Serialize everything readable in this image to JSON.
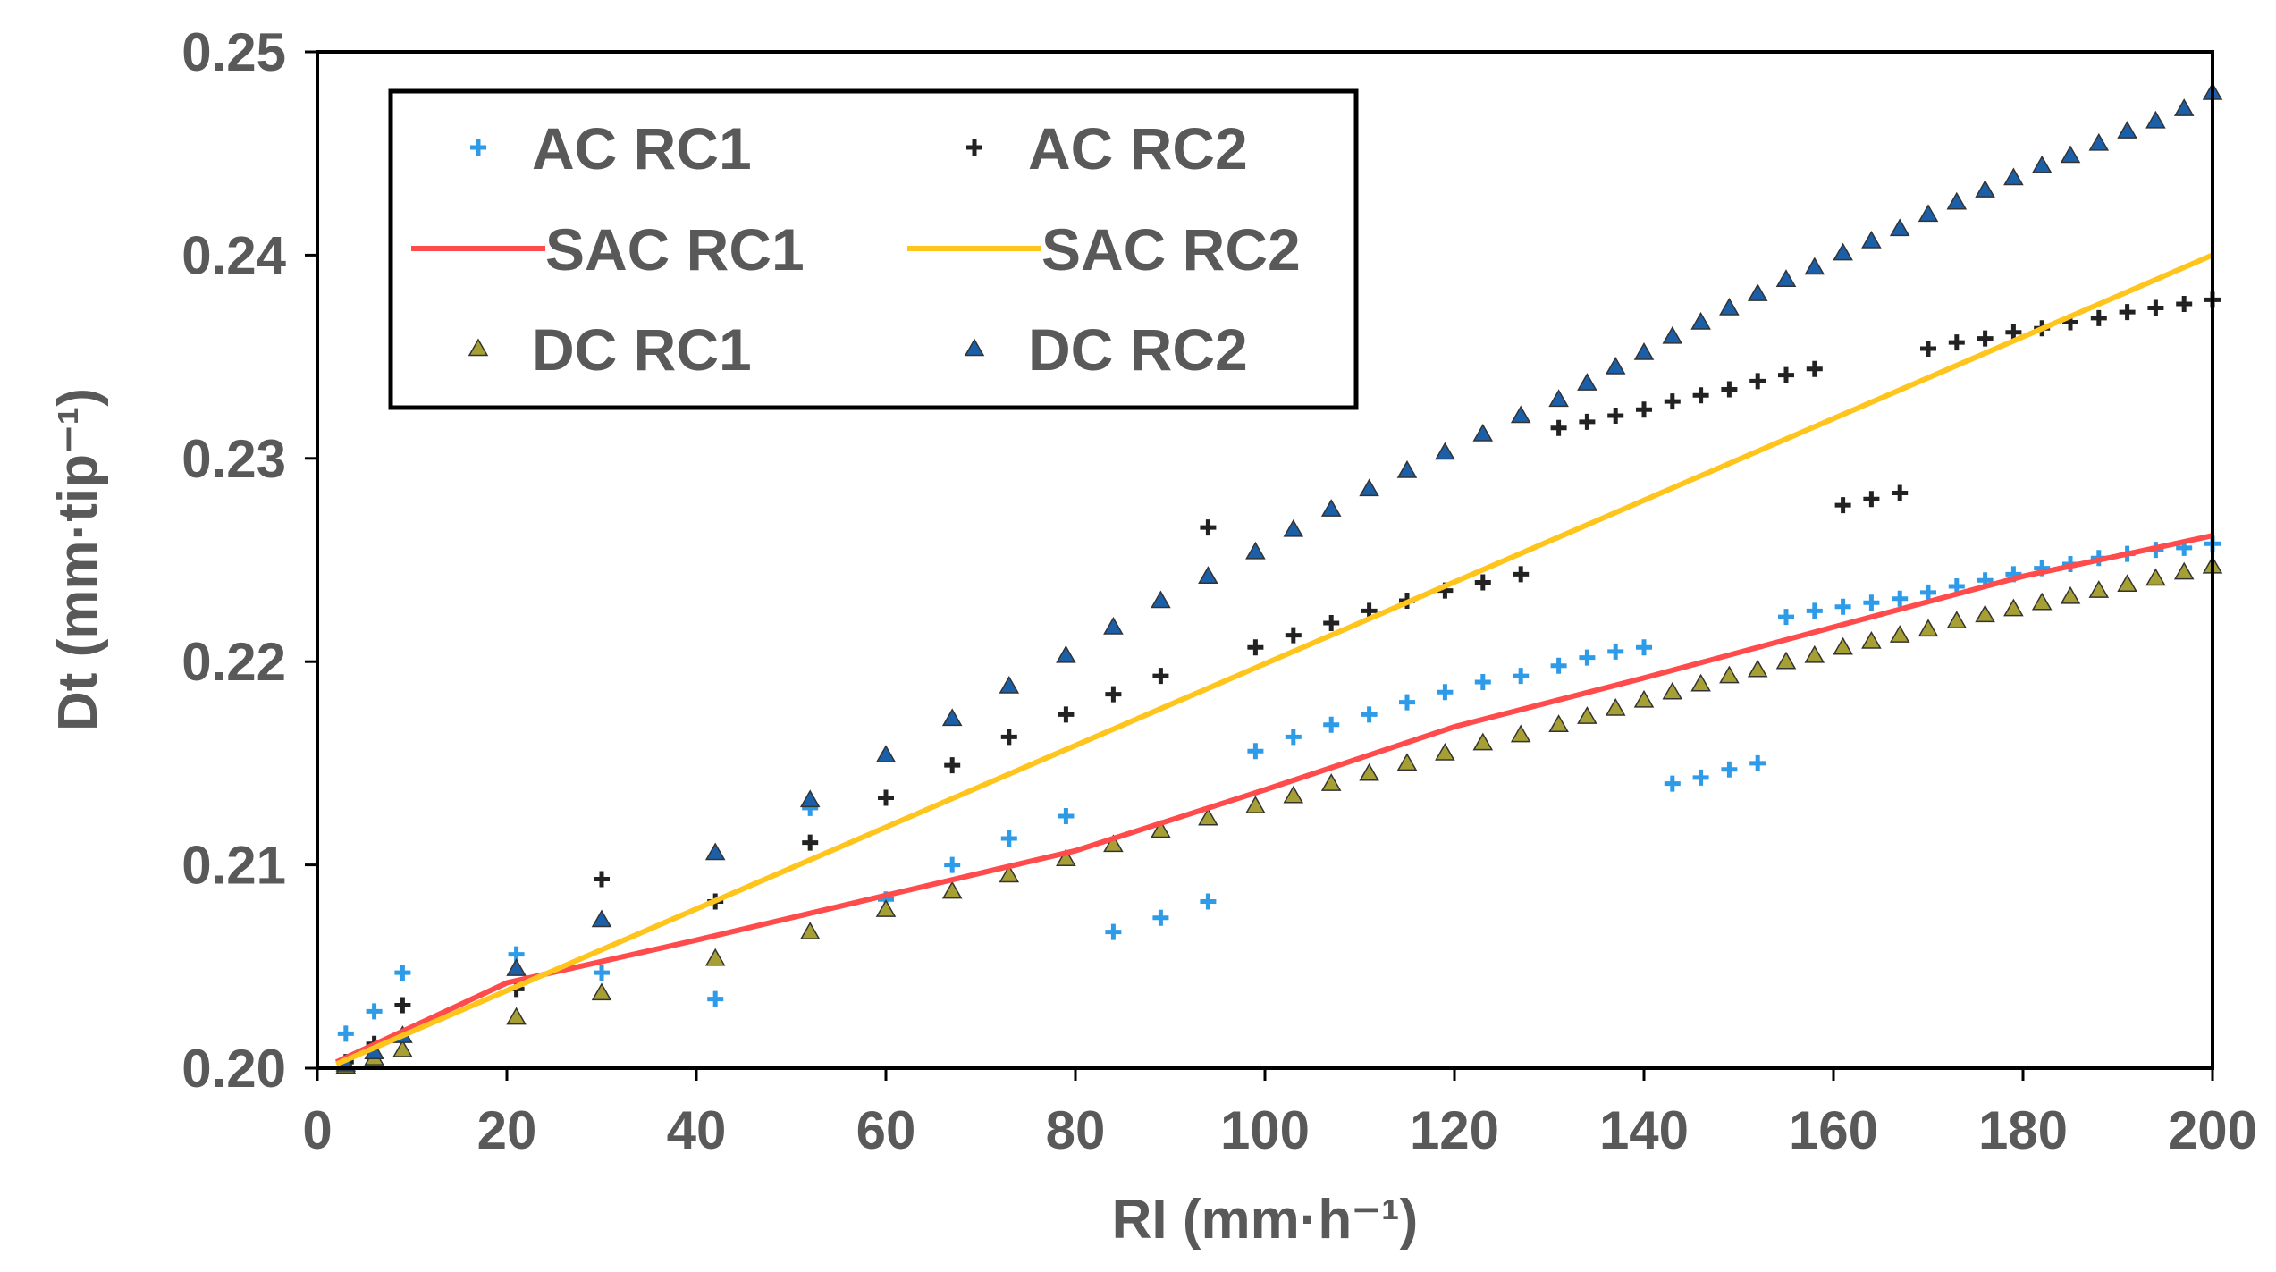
{
  "chart_data": {
    "type": "scatter",
    "title": "",
    "xlabel": "RI (mm·h⁻¹)",
    "ylabel": "Dt (mm·tip⁻¹)",
    "xlim": [
      0,
      200
    ],
    "ylim": [
      0.2,
      0.25
    ],
    "x_ticks": [
      "0",
      "20",
      "40",
      "60",
      "80",
      "100",
      "120",
      "140",
      "160",
      "180",
      "200"
    ],
    "y_ticks": [
      "0.20",
      "0.21",
      "0.22",
      "0.23",
      "0.24",
      "0.25"
    ],
    "grid": false,
    "legend_position": "top-left",
    "series": [
      {
        "name": "AC RC1",
        "kind": "scatter",
        "marker": "plus",
        "color": "#2E9BE8",
        "x": [
          3,
          6,
          9,
          21,
          30,
          42,
          52,
          60,
          67,
          73,
          79,
          84,
          89,
          94,
          99,
          103,
          107,
          111,
          115,
          119,
          123,
          127,
          131,
          134,
          137,
          140,
          143,
          146,
          149,
          152,
          155,
          158,
          161,
          164,
          167,
          170,
          173,
          176,
          179,
          182,
          185,
          188,
          191,
          194,
          197,
          200
        ],
        "y": [
          0.2017,
          0.2028,
          0.2047,
          0.2056,
          0.2047,
          0.2034,
          0.2128,
          0.2083,
          0.21,
          0.2113,
          0.2124,
          0.2067,
          0.2074,
          0.2082,
          0.2156,
          0.2163,
          0.2169,
          0.2174,
          0.218,
          0.2185,
          0.219,
          0.2193,
          0.2198,
          0.2202,
          0.2205,
          0.2207,
          0.214,
          0.2143,
          0.2147,
          0.215,
          0.2222,
          0.2225,
          0.2227,
          0.2229,
          0.2231,
          0.2234,
          0.2237,
          0.224,
          0.2243,
          0.2246,
          0.2248,
          0.2251,
          0.2253,
          0.2255,
          0.2256,
          0.2258
        ]
      },
      {
        "name": "AC RC2",
        "kind": "scatter",
        "marker": "plus",
        "color": "#222222",
        "x": [
          3,
          6,
          9,
          21,
          30,
          42,
          52,
          60,
          67,
          73,
          79,
          84,
          89,
          94,
          99,
          103,
          107,
          111,
          115,
          119,
          123,
          127,
          131,
          134,
          137,
          140,
          143,
          146,
          149,
          152,
          155,
          158,
          161,
          164,
          167,
          170,
          173,
          176,
          179,
          182,
          185,
          188,
          191,
          194,
          197,
          200
        ],
        "y": [
          0.2003,
          0.2012,
          0.2031,
          0.2039,
          0.2093,
          0.2082,
          0.2111,
          0.2133,
          0.2149,
          0.2163,
          0.2174,
          0.2184,
          0.2193,
          0.2266,
          0.2207,
          0.2213,
          0.2219,
          0.2225,
          0.223,
          0.2235,
          0.2239,
          0.2243,
          0.2315,
          0.2318,
          0.2321,
          0.2324,
          0.2328,
          0.2331,
          0.2334,
          0.2338,
          0.2341,
          0.2344,
          0.2277,
          0.228,
          0.2283,
          0.2354,
          0.2357,
          0.2359,
          0.2362,
          0.2364,
          0.2367,
          0.2369,
          0.2372,
          0.2374,
          0.2376,
          0.2378
        ]
      },
      {
        "name": "SAC RC1",
        "kind": "line",
        "color": "#FF4B4B",
        "x": [
          2,
          20,
          40,
          60,
          80,
          100,
          120,
          140,
          160,
          180,
          200
        ],
        "y": [
          0.2003,
          0.2042,
          0.2063,
          0.2085,
          0.2107,
          0.2137,
          0.2168,
          0.2192,
          0.2217,
          0.2242,
          0.2262
        ]
      },
      {
        "name": "SAC RC2",
        "kind": "line",
        "color": "#FFC51C",
        "x": [
          2,
          200
        ],
        "y": [
          0.2002,
          0.24
        ]
      },
      {
        "name": "DC RC1",
        "kind": "scatter",
        "marker": "triangle",
        "color": "#A6A034",
        "x": [
          3,
          6,
          9,
          21,
          30,
          42,
          52,
          60,
          67,
          73,
          79,
          84,
          89,
          94,
          99,
          103,
          107,
          111,
          115,
          119,
          123,
          127,
          131,
          134,
          137,
          140,
          143,
          146,
          149,
          152,
          155,
          158,
          161,
          164,
          167,
          170,
          173,
          176,
          179,
          182,
          185,
          188,
          191,
          194,
          197,
          200
        ],
        "y": [
          0.2001,
          0.2005,
          0.2009,
          0.2025,
          0.2037,
          0.2054,
          0.2067,
          0.2078,
          0.2087,
          0.2095,
          0.2103,
          0.211,
          0.2117,
          0.2123,
          0.2129,
          0.2134,
          0.214,
          0.2145,
          0.215,
          0.2155,
          0.216,
          0.2164,
          0.2169,
          0.2173,
          0.2177,
          0.2181,
          0.2185,
          0.2189,
          0.2193,
          0.2196,
          0.22,
          0.2203,
          0.2207,
          0.221,
          0.2213,
          0.2216,
          0.222,
          0.2223,
          0.2226,
          0.2229,
          0.2232,
          0.2235,
          0.2238,
          0.2241,
          0.2244,
          0.2247
        ]
      },
      {
        "name": "DC RC2",
        "kind": "scatter",
        "marker": "triangle",
        "color": "#1B5FA8",
        "x": [
          3,
          6,
          9,
          21,
          30,
          42,
          52,
          60,
          67,
          73,
          79,
          84,
          89,
          94,
          99,
          103,
          107,
          111,
          115,
          119,
          123,
          127,
          131,
          134,
          137,
          140,
          143,
          146,
          149,
          152,
          155,
          158,
          161,
          164,
          167,
          170,
          173,
          176,
          179,
          182,
          185,
          188,
          191,
          194,
          197,
          200
        ],
        "y": [
          0.2002,
          0.2008,
          0.2016,
          0.2049,
          0.2073,
          0.2106,
          0.2132,
          0.2154,
          0.2172,
          0.2188,
          0.2203,
          0.2217,
          0.223,
          0.2242,
          0.2254,
          0.2265,
          0.2275,
          0.2285,
          0.2294,
          0.2303,
          0.2312,
          0.2321,
          0.2329,
          0.2337,
          0.2345,
          0.2352,
          0.236,
          0.2367,
          0.2374,
          0.2381,
          0.2388,
          0.2394,
          0.2401,
          0.2407,
          0.2413,
          0.242,
          0.2426,
          0.2432,
          0.2438,
          0.2444,
          0.2449,
          0.2455,
          0.2461,
          0.2466,
          0.2472,
          0.248
        ]
      }
    ]
  }
}
